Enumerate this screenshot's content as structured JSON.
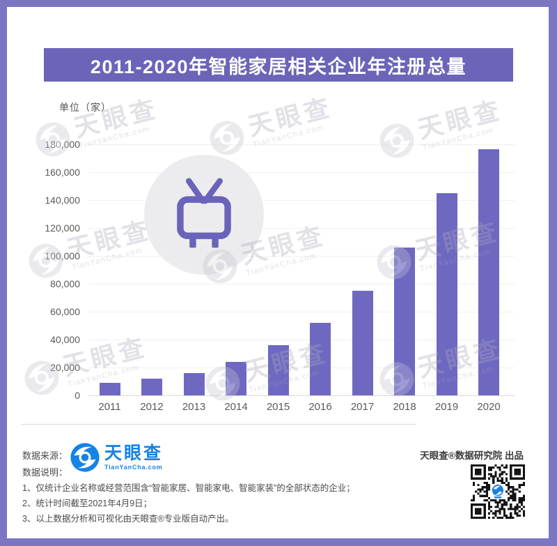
{
  "header": {
    "title": "2011-2020年智能家居相关企业年注册总量"
  },
  "chart_data": {
    "type": "bar",
    "title": "2011-2020年智能家居相关企业年注册总量",
    "unit_label": "单位（家）",
    "categories": [
      "2011",
      "2012",
      "2013",
      "2014",
      "2015",
      "2016",
      "2017",
      "2018",
      "2019",
      "2020"
    ],
    "values": [
      9000,
      12000,
      16000,
      24000,
      36000,
      52000,
      75000,
      106000,
      145000,
      176500
    ],
    "xlabel": "",
    "ylabel": "单位（家）",
    "ylim": [
      0,
      180000
    ],
    "ytick_step": 20000,
    "grid": true,
    "legend": false,
    "bar_color": "#6f68c1"
  },
  "center_icon": {
    "name": "tv-icon",
    "color": "#6a63ba",
    "circle_color": "#ececee"
  },
  "watermark": {
    "brand": "天眼查",
    "domain": "TianYanCha.com"
  },
  "footer": {
    "source_label": "数据来源：",
    "logo_brand": "天眼查",
    "logo_domain": "TianYanCha.com",
    "produced_by": "天眼查®数据研究院 出品",
    "notes_label": "数据说明：",
    "notes": [
      "1、仅统计企业名称或经营范围含“智能家居、智能家电、智能家装”的全部状态的企业；",
      "2、统计时间截至2021年4月9日；",
      "3、以上数据分析和可视化由天眼查®专业版自动产出。"
    ]
  },
  "colors": {
    "frame": "#7c76c2",
    "banner": "#6b64b8",
    "bar": "#6f68c1",
    "logo_blue": "#1583e6",
    "watermark_gray": "#a9a9bc"
  }
}
